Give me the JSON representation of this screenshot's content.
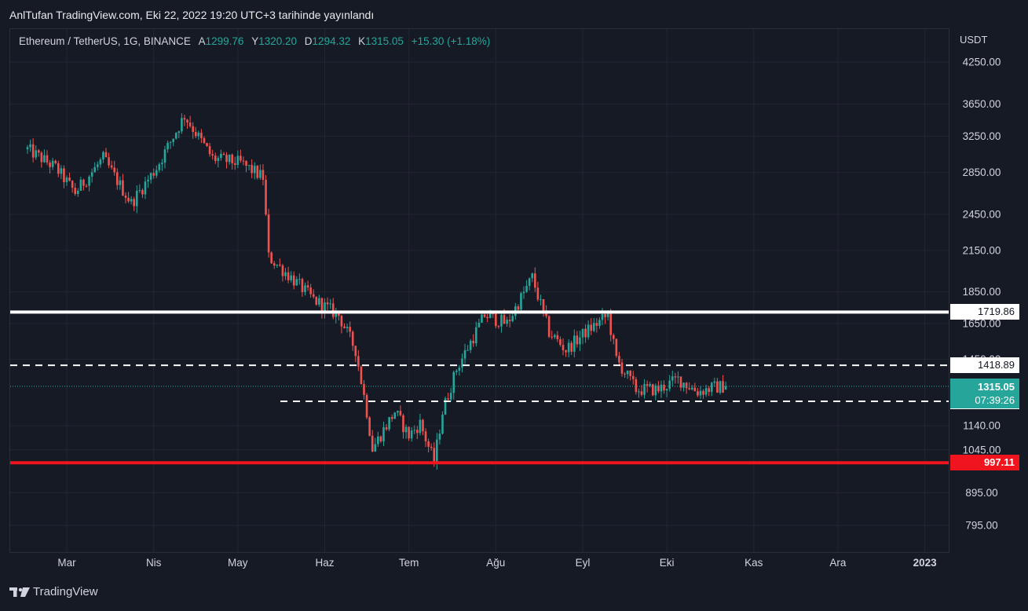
{
  "header": {
    "published": "AnlTufan TradingView.com, Eki 22, 2022 19:20 UTC+3 tarihinde yayınlandı"
  },
  "legend": {
    "symbol": "Ethereum / TetherUS, 1G, BINANCE",
    "open_label": "A",
    "open": "1299.76",
    "high_label": "Y",
    "high": "1320.20",
    "low_label": "D",
    "low": "1294.32",
    "close_label": "K",
    "close": "1315.05",
    "change": "+15.30 (+1.18%)"
  },
  "price_axis": {
    "currency": "USDT",
    "ticks": [
      "4250.00",
      "3650.00",
      "3250.00",
      "2850.00",
      "2450.00",
      "2150.00",
      "1850.00",
      "1650.00",
      "1450.00",
      "1140.00",
      "1045.00",
      "895.00",
      "795.00"
    ]
  },
  "time_axis": {
    "ticks": [
      "Mar",
      "Nis",
      "May",
      "Haz",
      "Tem",
      "Ağu",
      "Eyl",
      "Eki",
      "Kas",
      "Ara",
      "2023"
    ]
  },
  "levels": [
    {
      "price": 1719.86,
      "label": "1719.86",
      "style": "solid",
      "color": "#ffffff",
      "label_bg": "#ffffff",
      "label_fg": "#131722"
    },
    {
      "price": 1418.89,
      "label": "1418.89",
      "style": "dashed",
      "color": "#ffffff",
      "label_bg": "#ffffff",
      "label_fg": "#131722"
    },
    {
      "price": 1245.57,
      "label": "1245.57",
      "style": "dashed",
      "color": "#ffffff",
      "label_bg": "#ffffff",
      "label_fg": "#131722"
    },
    {
      "price": 997.11,
      "label": "997.11",
      "style": "solid",
      "color": "#f0141e",
      "label_bg": "#f0141e",
      "label_fg": "#ffffff"
    }
  ],
  "last_price": {
    "price": "1315.05",
    "countdown": "07:39:26",
    "color": "#26a69a"
  },
  "colors": {
    "up": "#26a69a",
    "down": "#ef5350",
    "background": "#161a25",
    "grid": "#232632"
  },
  "brand": "TradingView",
  "chart_data": {
    "type": "candlestick",
    "title": "Ethereum / TetherUS, 1G, BINANCE",
    "xlabel": "",
    "ylabel": "",
    "ylim": [
      740,
      4600
    ],
    "y_scale": "log",
    "grid": true,
    "categories": [
      "Mar",
      "Nis",
      "May",
      "Haz",
      "Tem",
      "Ağu",
      "Eyl",
      "Eki",
      "Kas",
      "Ara",
      "2023"
    ],
    "x": [
      "2022-02-15",
      "2022-02-25",
      "2022-03-04",
      "2022-03-14",
      "2022-03-24",
      "2022-04-02",
      "2022-04-12",
      "2022-04-22",
      "2022-05-02",
      "2022-05-10",
      "2022-05-12",
      "2022-05-20",
      "2022-05-28",
      "2022-06-06",
      "2022-06-12",
      "2022-06-16",
      "2022-06-18",
      "2022-06-26",
      "2022-07-01",
      "2022-07-05",
      "2022-07-10",
      "2022-07-13",
      "2022-07-18",
      "2022-07-28",
      "2022-08-05",
      "2022-08-14",
      "2022-08-20",
      "2022-08-26",
      "2022-09-02",
      "2022-09-10",
      "2022-09-13",
      "2022-09-20",
      "2022-09-28",
      "2022-10-05",
      "2022-10-12",
      "2022-10-18",
      "2022-10-22"
    ],
    "series": [
      {
        "name": "Ethereum / TetherUS",
        "values": [
          3100,
          2900,
          2650,
          3000,
          2550,
          2900,
          3500,
          3000,
          2950,
          2800,
          2100,
          1950,
          1800,
          1700,
          1500,
          1200,
          1050,
          1200,
          1100,
          1150,
          1000,
          1200,
          1400,
          1700,
          1650,
          1950,
          1600,
          1500,
          1600,
          1700,
          1450,
          1300,
          1300,
          1350,
          1290,
          1310,
          1315.05
        ]
      }
    ]
  }
}
